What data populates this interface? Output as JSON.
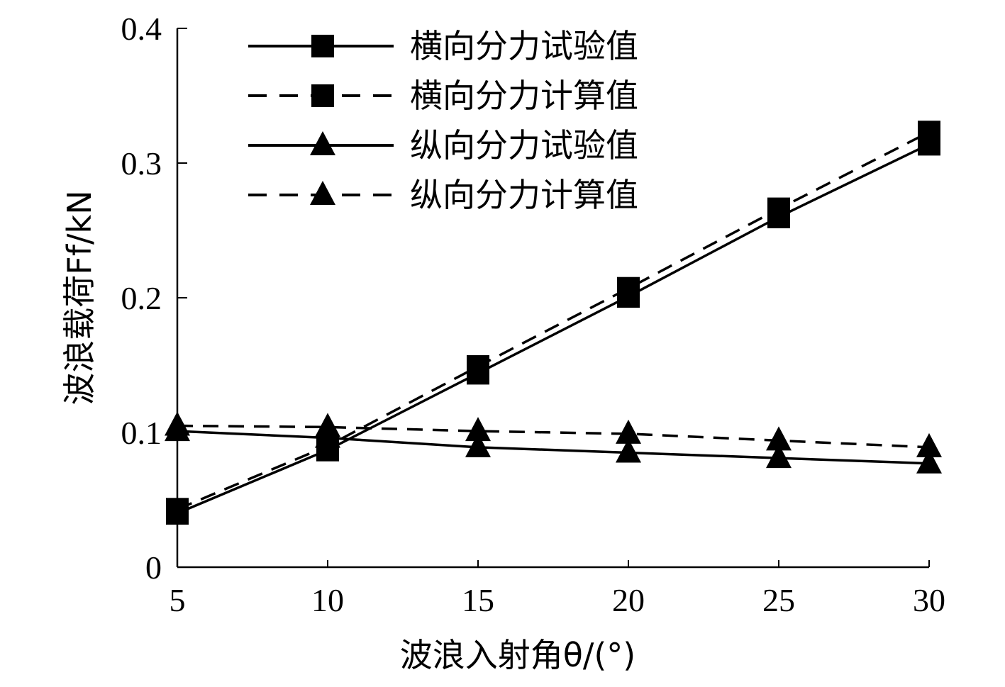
{
  "chart_data": {
    "type": "line",
    "x": [
      5,
      10,
      15,
      20,
      25,
      30
    ],
    "xlim": [
      5,
      30
    ],
    "ylim": [
      0,
      0.4
    ],
    "x_ticks": [
      "5",
      "10",
      "15",
      "20",
      "25",
      "30"
    ],
    "y_ticks": [
      "0",
      "0.1",
      "0.2",
      "0.3",
      "0.4"
    ],
    "xlabel": "波浪入射角θ/(°)",
    "ylabel": "波浪载荷Ff/kN",
    "grid": false,
    "legend_position": "top-center",
    "series": [
      {
        "name": "横向分力试验值",
        "marker": "square",
        "line_style": "solid",
        "values": [
          0.04,
          0.087,
          0.144,
          0.201,
          0.26,
          0.314
        ]
      },
      {
        "name": "横向分力计算值",
        "marker": "square",
        "line_style": "dashed",
        "values": [
          0.043,
          0.09,
          0.149,
          0.207,
          0.266,
          0.323
        ]
      },
      {
        "name": "纵向分力试验值",
        "marker": "triangle",
        "line_style": "solid",
        "values": [
          0.101,
          0.096,
          0.089,
          0.085,
          0.081,
          0.077
        ]
      },
      {
        "name": "纵向分力计算值",
        "marker": "triangle",
        "line_style": "dashed",
        "values": [
          0.105,
          0.104,
          0.101,
          0.099,
          0.094,
          0.089
        ]
      }
    ]
  }
}
